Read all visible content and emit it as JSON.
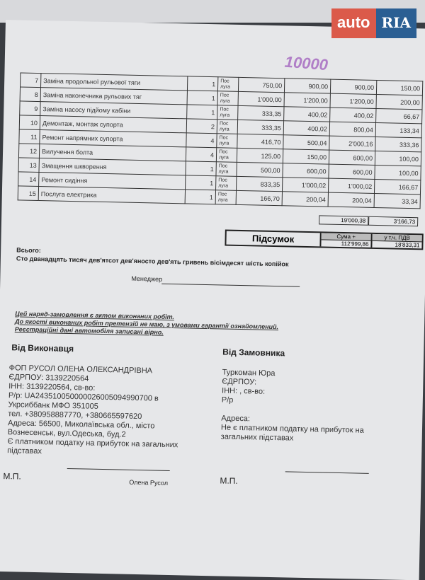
{
  "logo": {
    "text_left": "auto",
    "text_right": "RIA"
  },
  "handwritten": "10000",
  "items": [
    {
      "n": "7",
      "name": "Заміна продольної рульової тяги",
      "qty": "1",
      "unit": "Пос луга",
      "price": "750,00",
      "price_vat": "900,00",
      "sum": "900,00",
      "vat": "150,00"
    },
    {
      "n": "8",
      "name": "Заміна наконечника рульових тяг",
      "qty": "1",
      "unit": "Пос луга",
      "price": "1'000,00",
      "price_vat": "1'200,00",
      "sum": "1'200,00",
      "vat": "200,00"
    },
    {
      "n": "9",
      "name": "Заміна насосу підйому кабіни",
      "qty": "1",
      "unit": "Пос луга",
      "price": "333,35",
      "price_vat": "400,02",
      "sum": "400,02",
      "vat": "66,67"
    },
    {
      "n": "10",
      "name": "Демонтаж, монтаж супорта",
      "qty": "2",
      "unit": "Пос луга",
      "price": "333,35",
      "price_vat": "400,02",
      "sum": "800,04",
      "vat": "133,34"
    },
    {
      "n": "11",
      "name": "Ремонт напрямних супорта",
      "qty": "4",
      "unit": "Пос луга",
      "price": "416,70",
      "price_vat": "500,04",
      "sum": "2'000,16",
      "vat": "333,36"
    },
    {
      "n": "12",
      "name": "Вилучення болта",
      "qty": "4",
      "unit": "Пос луга",
      "price": "125,00",
      "price_vat": "150,00",
      "sum": "600,00",
      "vat": "100,00"
    },
    {
      "n": "13",
      "name": "Змащення шкворення",
      "qty": "1",
      "unit": "Пос луга",
      "price": "500,00",
      "price_vat": "600,00",
      "sum": "600,00",
      "vat": "100,00"
    },
    {
      "n": "14",
      "name": "Ремонт сидіння",
      "qty": "1",
      "unit": "Пос луга",
      "price": "833,35",
      "price_vat": "1'000,02",
      "sum": "1'000,02",
      "vat": "166,67"
    },
    {
      "n": "15",
      "name": "Послуга електрика",
      "qty": "1",
      "unit": "Пос луга",
      "price": "166,70",
      "price_vat": "200,04",
      "sum": "200,04",
      "vat": "33,34"
    }
  ],
  "totals": {
    "sum": "19'000,38",
    "vat": "3'166,73"
  },
  "summary": {
    "label": "Підсумок",
    "sum_header": "Сума +",
    "sum": "112'999,86",
    "vat_header": "у т.ч. ПДВ",
    "vat": "18'833,31"
  },
  "total_words_label": "Всього:",
  "total_words": "Сто дванадцять тисяч дев'ятсот дев'яносто дев'ять гривень вісімдесят шість копійок",
  "manager_label": "Менеджер",
  "notes": [
    "Цей наряд-замовлення є актом виконаних робіт.",
    "До якості виконаних робіт претензій не маю, з умовами гарантії ознайомлений.",
    "Реєстраційні дані автомобіля записані вірно."
  ],
  "contractor": {
    "heading": "Від Виконавця",
    "lines": [
      "ФОП РУСОЛ ОЛЕНА ОЛЕКСАНДРІВНА",
      "ЄДРПОУ: 3139220564",
      "ІНН: 3139220564, св-во:",
      "Р/р: UA243510050000026005094990700 в",
      "Укрсиббанк МФО 351005",
      "тел. +380958887770, +380665597620",
      "Адреса: 56500, Миколаївська обл., місто",
      "Вознесенськ, вул.Одеська, буд.2",
      "Є платником податку на прибуток на загальних",
      "підставах"
    ],
    "stamp": "М.П.",
    "signature": "Олена Русол"
  },
  "customer": {
    "heading": "Від Замовника",
    "lines": [
      "Туркоман Юра",
      "ЄДРПОУ:",
      "ІНН: , св-во:",
      "Р/р",
      "",
      "Адреса:",
      "Не є платником податку на прибуток на",
      "загальних підставах"
    ],
    "stamp": "М.П."
  }
}
